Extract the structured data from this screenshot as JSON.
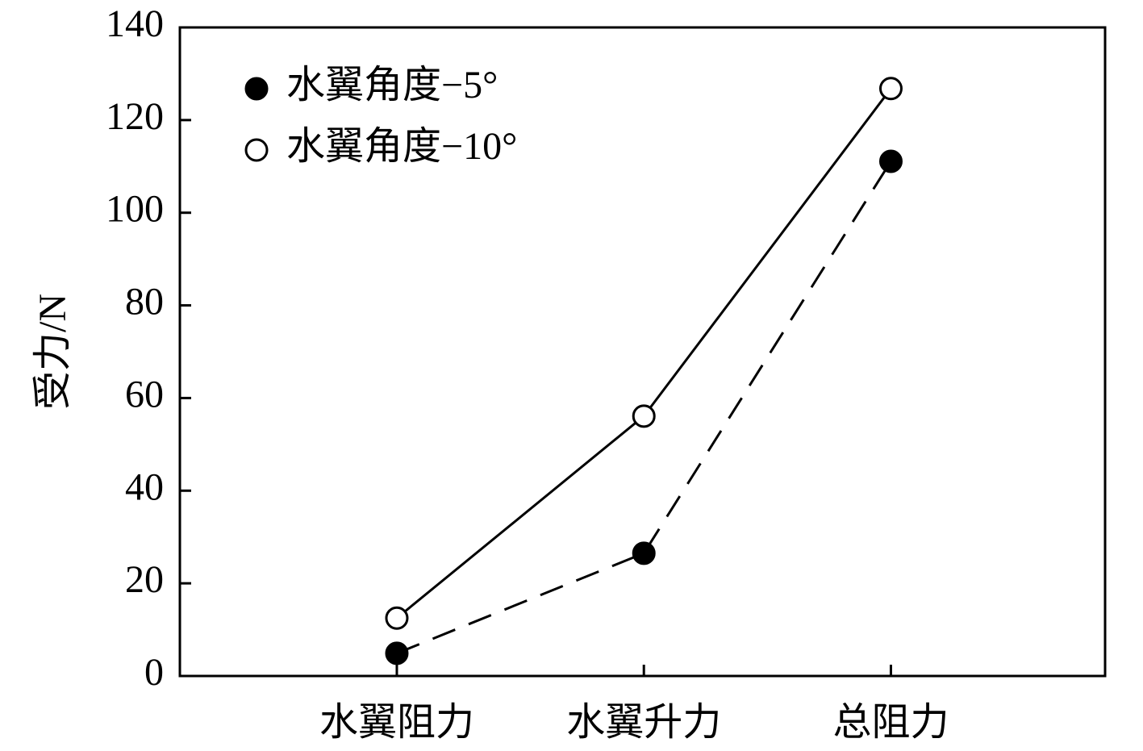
{
  "chart_data": {
    "type": "line",
    "y_label": "受力/N",
    "categories": [
      "水翼阻力",
      "水翼升力",
      "总阻力"
    ],
    "series": [
      {
        "name": "水翼角度−5°",
        "color": "#000000",
        "line_style": "dashed",
        "marker": "filled",
        "values": [
          4.9,
          26.5,
          111.1
        ]
      },
      {
        "name": "水翼角度−10°",
        "color": "#000000",
        "line_style": "solid",
        "marker": "hollow",
        "values": [
          12.5,
          56.1,
          126.8
        ]
      }
    ],
    "ylim": [
      0,
      140
    ],
    "yticks": [
      0,
      20,
      40,
      60,
      80,
      100,
      120,
      140
    ],
    "legend": "upper-left"
  }
}
